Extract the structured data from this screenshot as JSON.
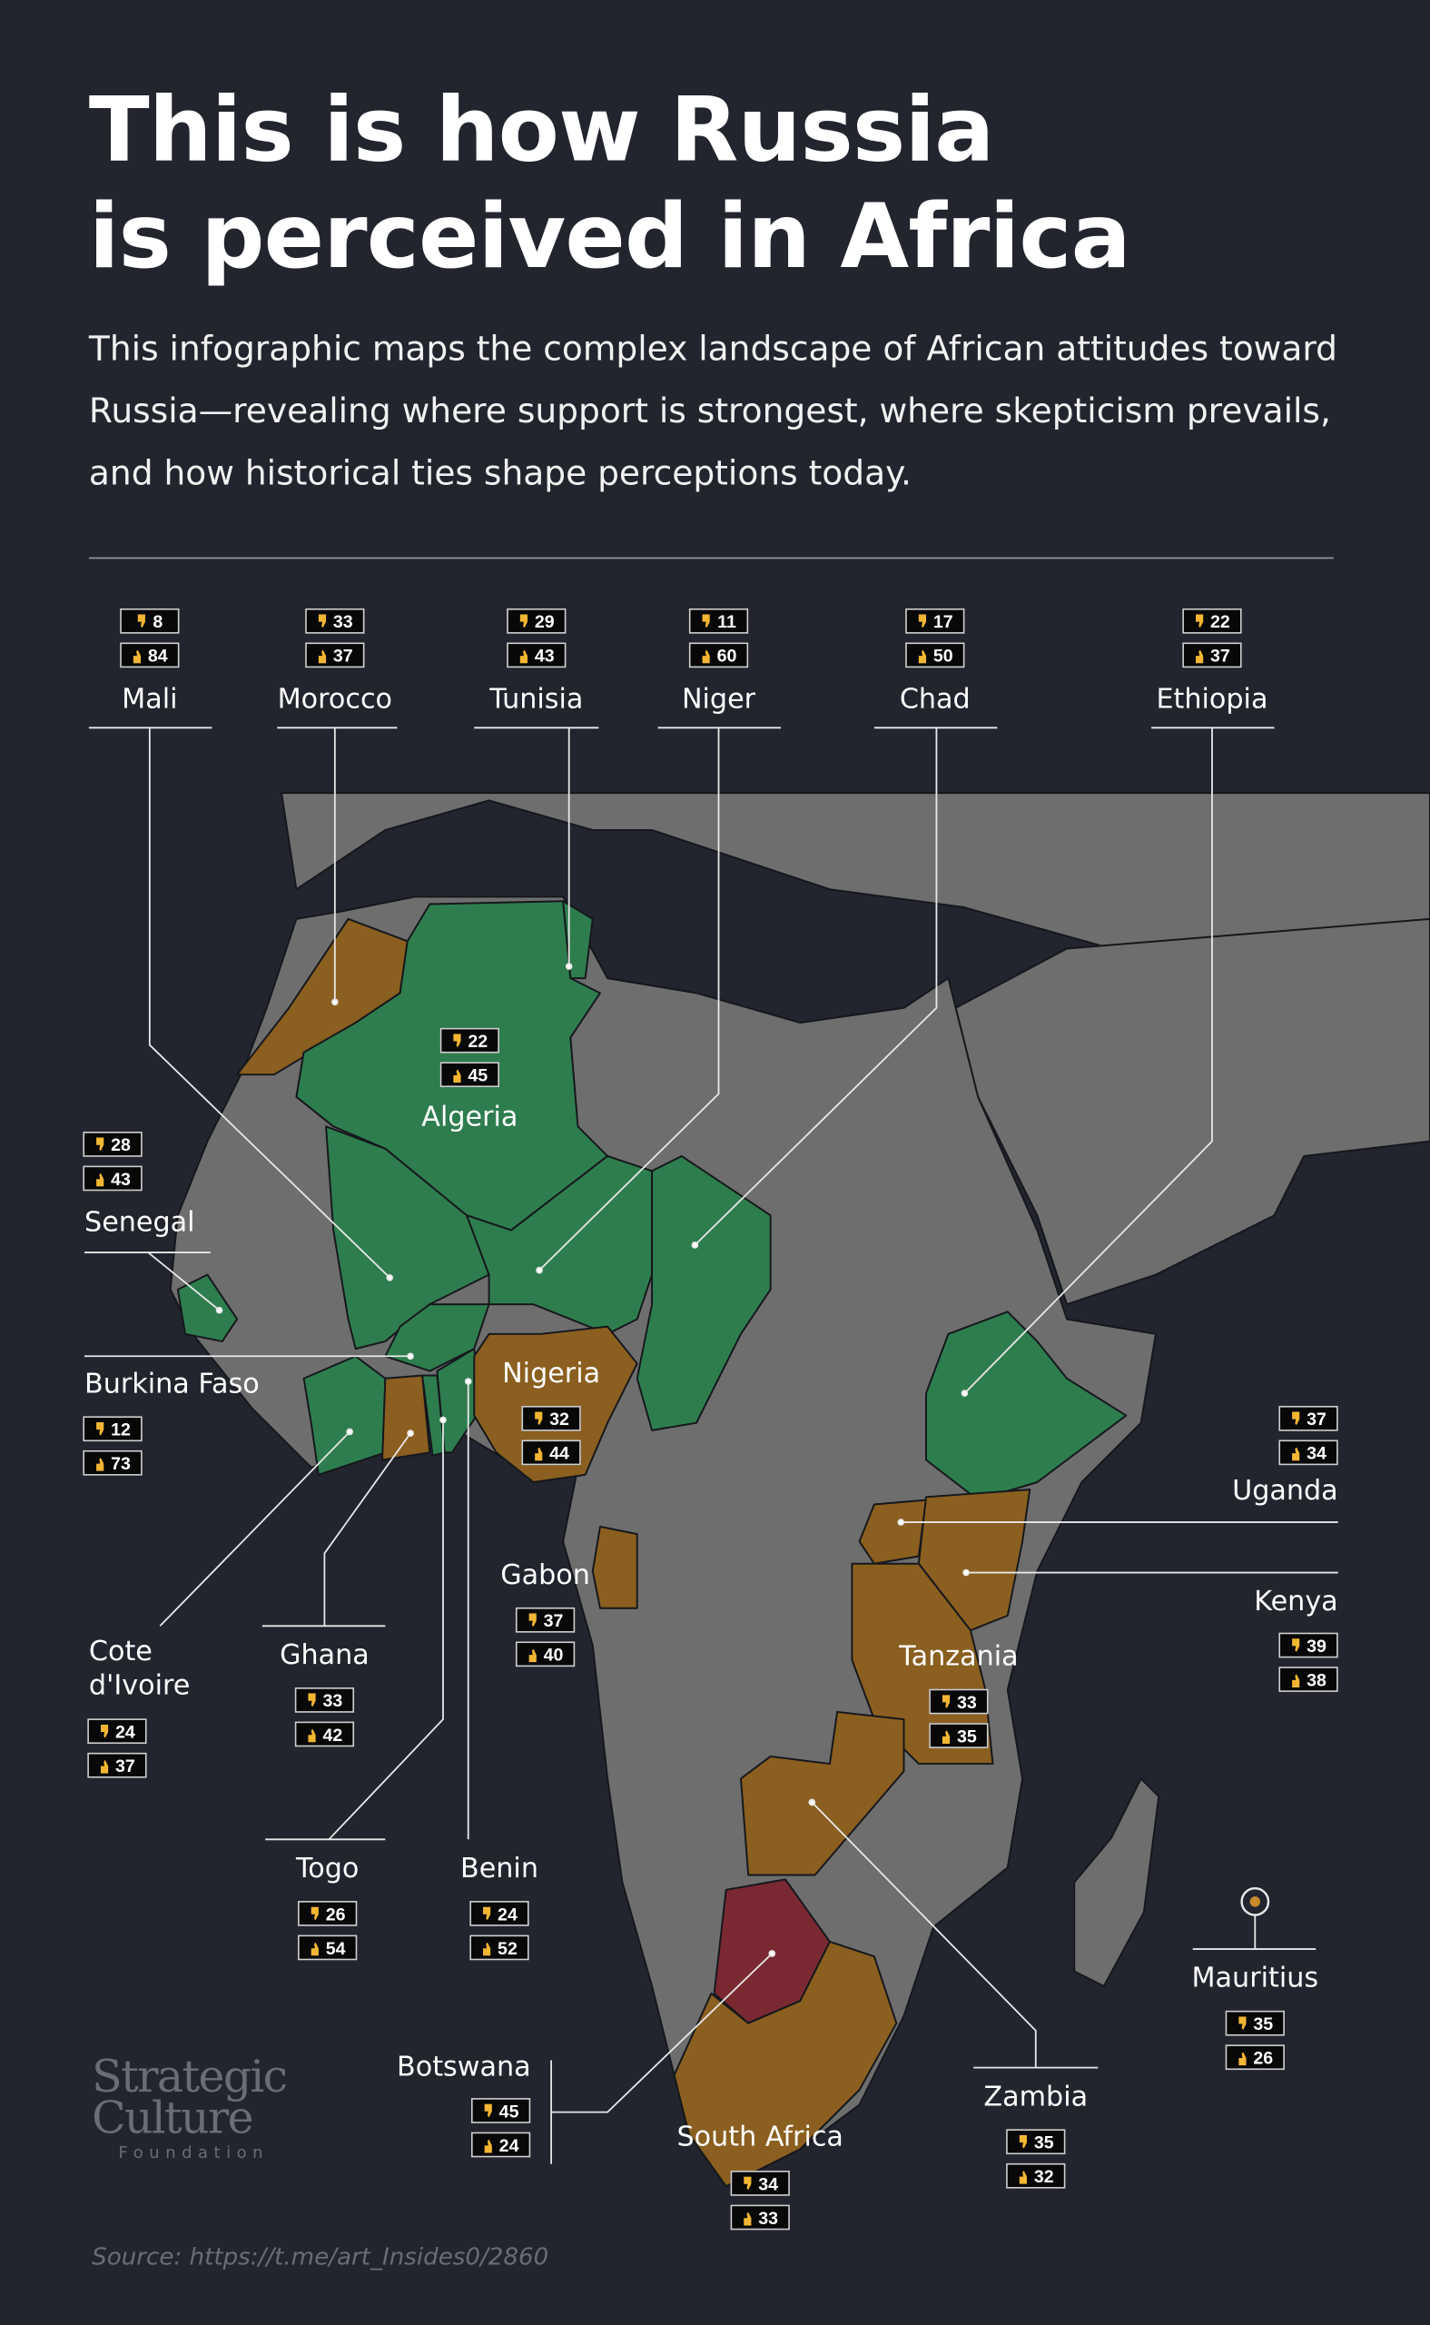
{
  "title_line1": "This is how Russia",
  "title_line2": "is perceived in Africa",
  "subtitle": "This infographic maps the complex landscape of African attitudes toward Russia—revealing where support is strongest, where skepticism prevails, and how historical ties shape perceptions today.",
  "logo": {
    "line1": "Strategic",
    "line2": "Culture",
    "line3": "Foundation"
  },
  "source": "Source: https://t.me/art_Insides0/2860",
  "colors": {
    "background": "#22252e",
    "positive": "#2e7d4f",
    "mixed": "#8a5f1f",
    "negative": "#7a2832",
    "neutral": "#6e6e6e",
    "icon": "#f2b632"
  },
  "chart_data": {
    "type": "map",
    "title": "This is how Russia is perceived in Africa",
    "legend": {
      "dislike_icon": "thumbs-down-icon",
      "like_icon": "thumbs-up-icon"
    },
    "countries": {
      "mali": {
        "name": "Mali",
        "dislike": 8,
        "like": 84,
        "category": "positive"
      },
      "morocco": {
        "name": "Morocco",
        "dislike": 33,
        "like": 37,
        "category": "mixed"
      },
      "tunisia": {
        "name": "Tunisia",
        "dislike": 29,
        "like": 43,
        "category": "positive"
      },
      "niger": {
        "name": "Niger",
        "dislike": 11,
        "like": 60,
        "category": "positive"
      },
      "chad": {
        "name": "Chad",
        "dislike": 17,
        "like": 50,
        "category": "positive"
      },
      "ethiopia": {
        "name": "Ethiopia",
        "dislike": 22,
        "like": 37,
        "category": "positive"
      },
      "algeria": {
        "name": "Algeria",
        "dislike": 22,
        "like": 45,
        "category": "positive"
      },
      "senegal": {
        "name": "Senegal",
        "dislike": 28,
        "like": 43,
        "category": "positive"
      },
      "burkina": {
        "name": "Burkina Faso",
        "dislike": 12,
        "like": 73,
        "category": "positive"
      },
      "nigeria": {
        "name": "Nigeria",
        "dislike": 32,
        "like": 44,
        "category": "mixed"
      },
      "cote": {
        "name": "Cote\nd'Ivoire",
        "dislike": 24,
        "like": 37,
        "category": "positive"
      },
      "ghana": {
        "name": "Ghana",
        "dislike": 33,
        "like": 42,
        "category": "mixed"
      },
      "gabon": {
        "name": "Gabon",
        "dislike": 37,
        "like": 40,
        "category": "mixed"
      },
      "togo": {
        "name": "Togo",
        "dislike": 26,
        "like": 54,
        "category": "positive"
      },
      "benin": {
        "name": "Benin",
        "dislike": 24,
        "like": 52,
        "category": "positive"
      },
      "tanzania": {
        "name": "Tanzania",
        "dislike": 33,
        "like": 35,
        "category": "mixed"
      },
      "uganda": {
        "name": "Uganda",
        "dislike": 37,
        "like": 34,
        "category": "mixed"
      },
      "kenya": {
        "name": "Kenya",
        "dislike": 39,
        "like": 38,
        "category": "mixed"
      },
      "mauritius": {
        "name": "Mauritius",
        "dislike": 35,
        "like": 26,
        "category": "negative"
      },
      "zambia": {
        "name": "Zambia",
        "dislike": 35,
        "like": 32,
        "category": "mixed"
      },
      "botswana": {
        "name": "Botswana",
        "dislike": 45,
        "like": 24,
        "category": "negative"
      },
      "southafrica": {
        "name": "South Africa",
        "dislike": 34,
        "like": 33,
        "category": "mixed"
      }
    }
  }
}
